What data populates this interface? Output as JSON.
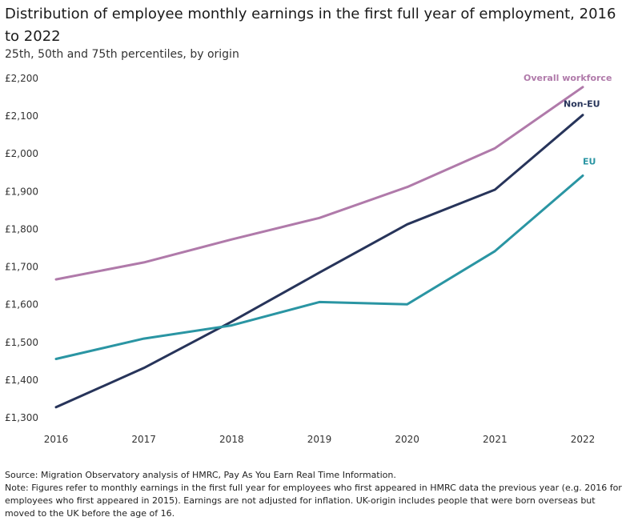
{
  "title": "Distribution of employee monthly earnings in the first full year of employment, 2016 to 2022",
  "subtitle": "25th, 50th and 75th percentiles, by origin",
  "source": "Source: Migration Observatory analysis of HMRC, Pay As You Earn Real Time Information.",
  "note": "Note: Figures refer to monthly earnings in the first full year for employees who first appeared in HMRC data the previous year (e.g. 2016 for employees who first appeared in 2015). Earnings are not adjusted for inflation. UK-origin includes people that were born overseas but moved to the UK before the age of 16.",
  "chart_data": {
    "type": "line",
    "categories": [
      "2016",
      "2017",
      "2018",
      "2019",
      "2020",
      "2021",
      "2022"
    ],
    "ylim": [
      1300,
      2200
    ],
    "yticks": [
      "£1,300",
      "£1,400",
      "£1,500",
      "£1,600",
      "£1,700",
      "£1,800",
      "£1,900",
      "£2,000",
      "£2,100",
      "£2,200"
    ],
    "ytick_values": [
      1300,
      1400,
      1500,
      1600,
      1700,
      1800,
      1900,
      2000,
      2100,
      2200
    ],
    "grid": false,
    "series": [
      {
        "name": "Overall workforce",
        "color": "#b07aaa",
        "values": [
          1667,
          1712,
          1773,
          1830,
          1912,
          2015,
          2177
        ]
      },
      {
        "name": "Non-EU",
        "color": "#27345a",
        "values": [
          1328,
          1432,
          1555,
          1685,
          1813,
          1905,
          2103
        ]
      },
      {
        "name": "EU",
        "color": "#2a95a3",
        "values": [
          1456,
          1510,
          1545,
          1607,
          1601,
          1742,
          1942
        ]
      }
    ]
  }
}
